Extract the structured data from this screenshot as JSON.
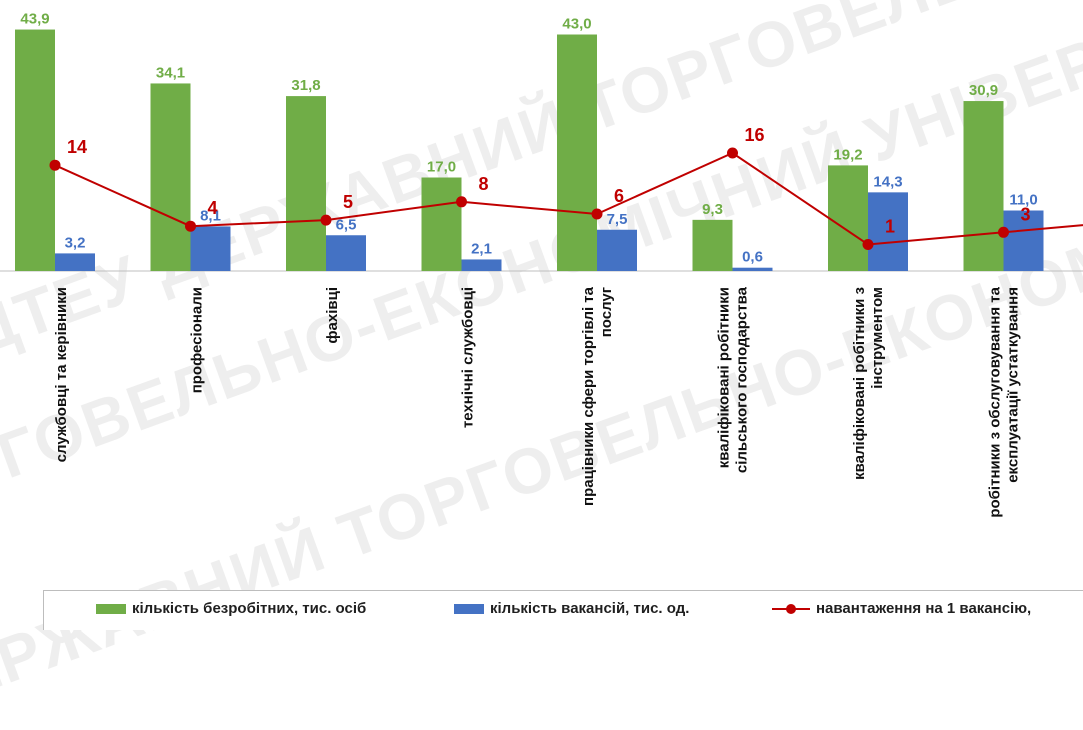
{
  "watermark": {
    "lines": [
      "ДТЕУ ДЕРЖАВНИЙ ТОРГОВЕЛЬНО-ЕКОНОМІЧНИЙ УНІВЕРСИТЕТ",
      "ТОРГОВЕЛЬНО-ЕКОНОМІЧНИЙ УНІВЕРСИТЕТ ДТЕУ ДЕРЖАВНИЙ",
      "ДЕРЖАВНИЙ ТОРГОВЕЛЬНО-ЕКОНОМІЧНИЙ ДТЕУ УНІВЕРСИТЕТ"
    ]
  },
  "colors": {
    "unemployed": "#70ad47",
    "vacancies": "#4472c4",
    "load": "#c00000",
    "unemployed_label": "#70ad47",
    "vacancies_label": "#4472c4",
    "load_label": "#c00000",
    "axis": "#bfbfbf"
  },
  "chart_data": {
    "type": "bar",
    "categories": [
      "службовці та керівники",
      "професіонали",
      "фахівці",
      "технічні службовці",
      "працівники сфери торгівлі та послуг",
      "кваліфіковані робітники сільського господарства",
      "кваліфіковані робітники з інструментом",
      "робітники з обслуговування та експлуатації устаткування"
    ],
    "category_lines": [
      [
        "службовці та керівники"
      ],
      [
        "професіонали"
      ],
      [
        "фахівці"
      ],
      [
        "технічні службовці"
      ],
      [
        "працівники сфери торгівлі та",
        "послуг"
      ],
      [
        "кваліфіковані робітники",
        "сільського господарства"
      ],
      [
        "кваліфіковані робітники з",
        "інструментом"
      ],
      [
        "робітники з обслуговування та",
        "експлуатації устаткування"
      ]
    ],
    "series": [
      {
        "name": "кількість безробітних, тис. осіб",
        "type": "bar",
        "values": [
          43.9,
          34.1,
          31.8,
          17.0,
          43.0,
          9.3,
          19.2,
          30.9
        ],
        "labels": [
          "43,9",
          "34,1",
          "31,8",
          "17,0",
          "43,0",
          "9,3",
          "19,2",
          "30,9"
        ]
      },
      {
        "name": "кількість вакансій, тис. од.",
        "type": "bar",
        "values": [
          3.2,
          8.1,
          6.5,
          2.1,
          7.5,
          0.6,
          14.3,
          11.0
        ],
        "labels": [
          "3,2",
          "8,1",
          "6,5",
          "2,1",
          "7,5",
          "0,6",
          "14,3",
          "11,0"
        ]
      },
      {
        "name": "навантаження на 1 вакансію,",
        "type": "line",
        "values": [
          14,
          4,
          5,
          8,
          6,
          16,
          1,
          3
        ],
        "labels": [
          "14",
          "4",
          "5",
          "8",
          "6",
          "16",
          "1",
          "3"
        ]
      }
    ],
    "legend_position": "bottom",
    "grid": false
  }
}
